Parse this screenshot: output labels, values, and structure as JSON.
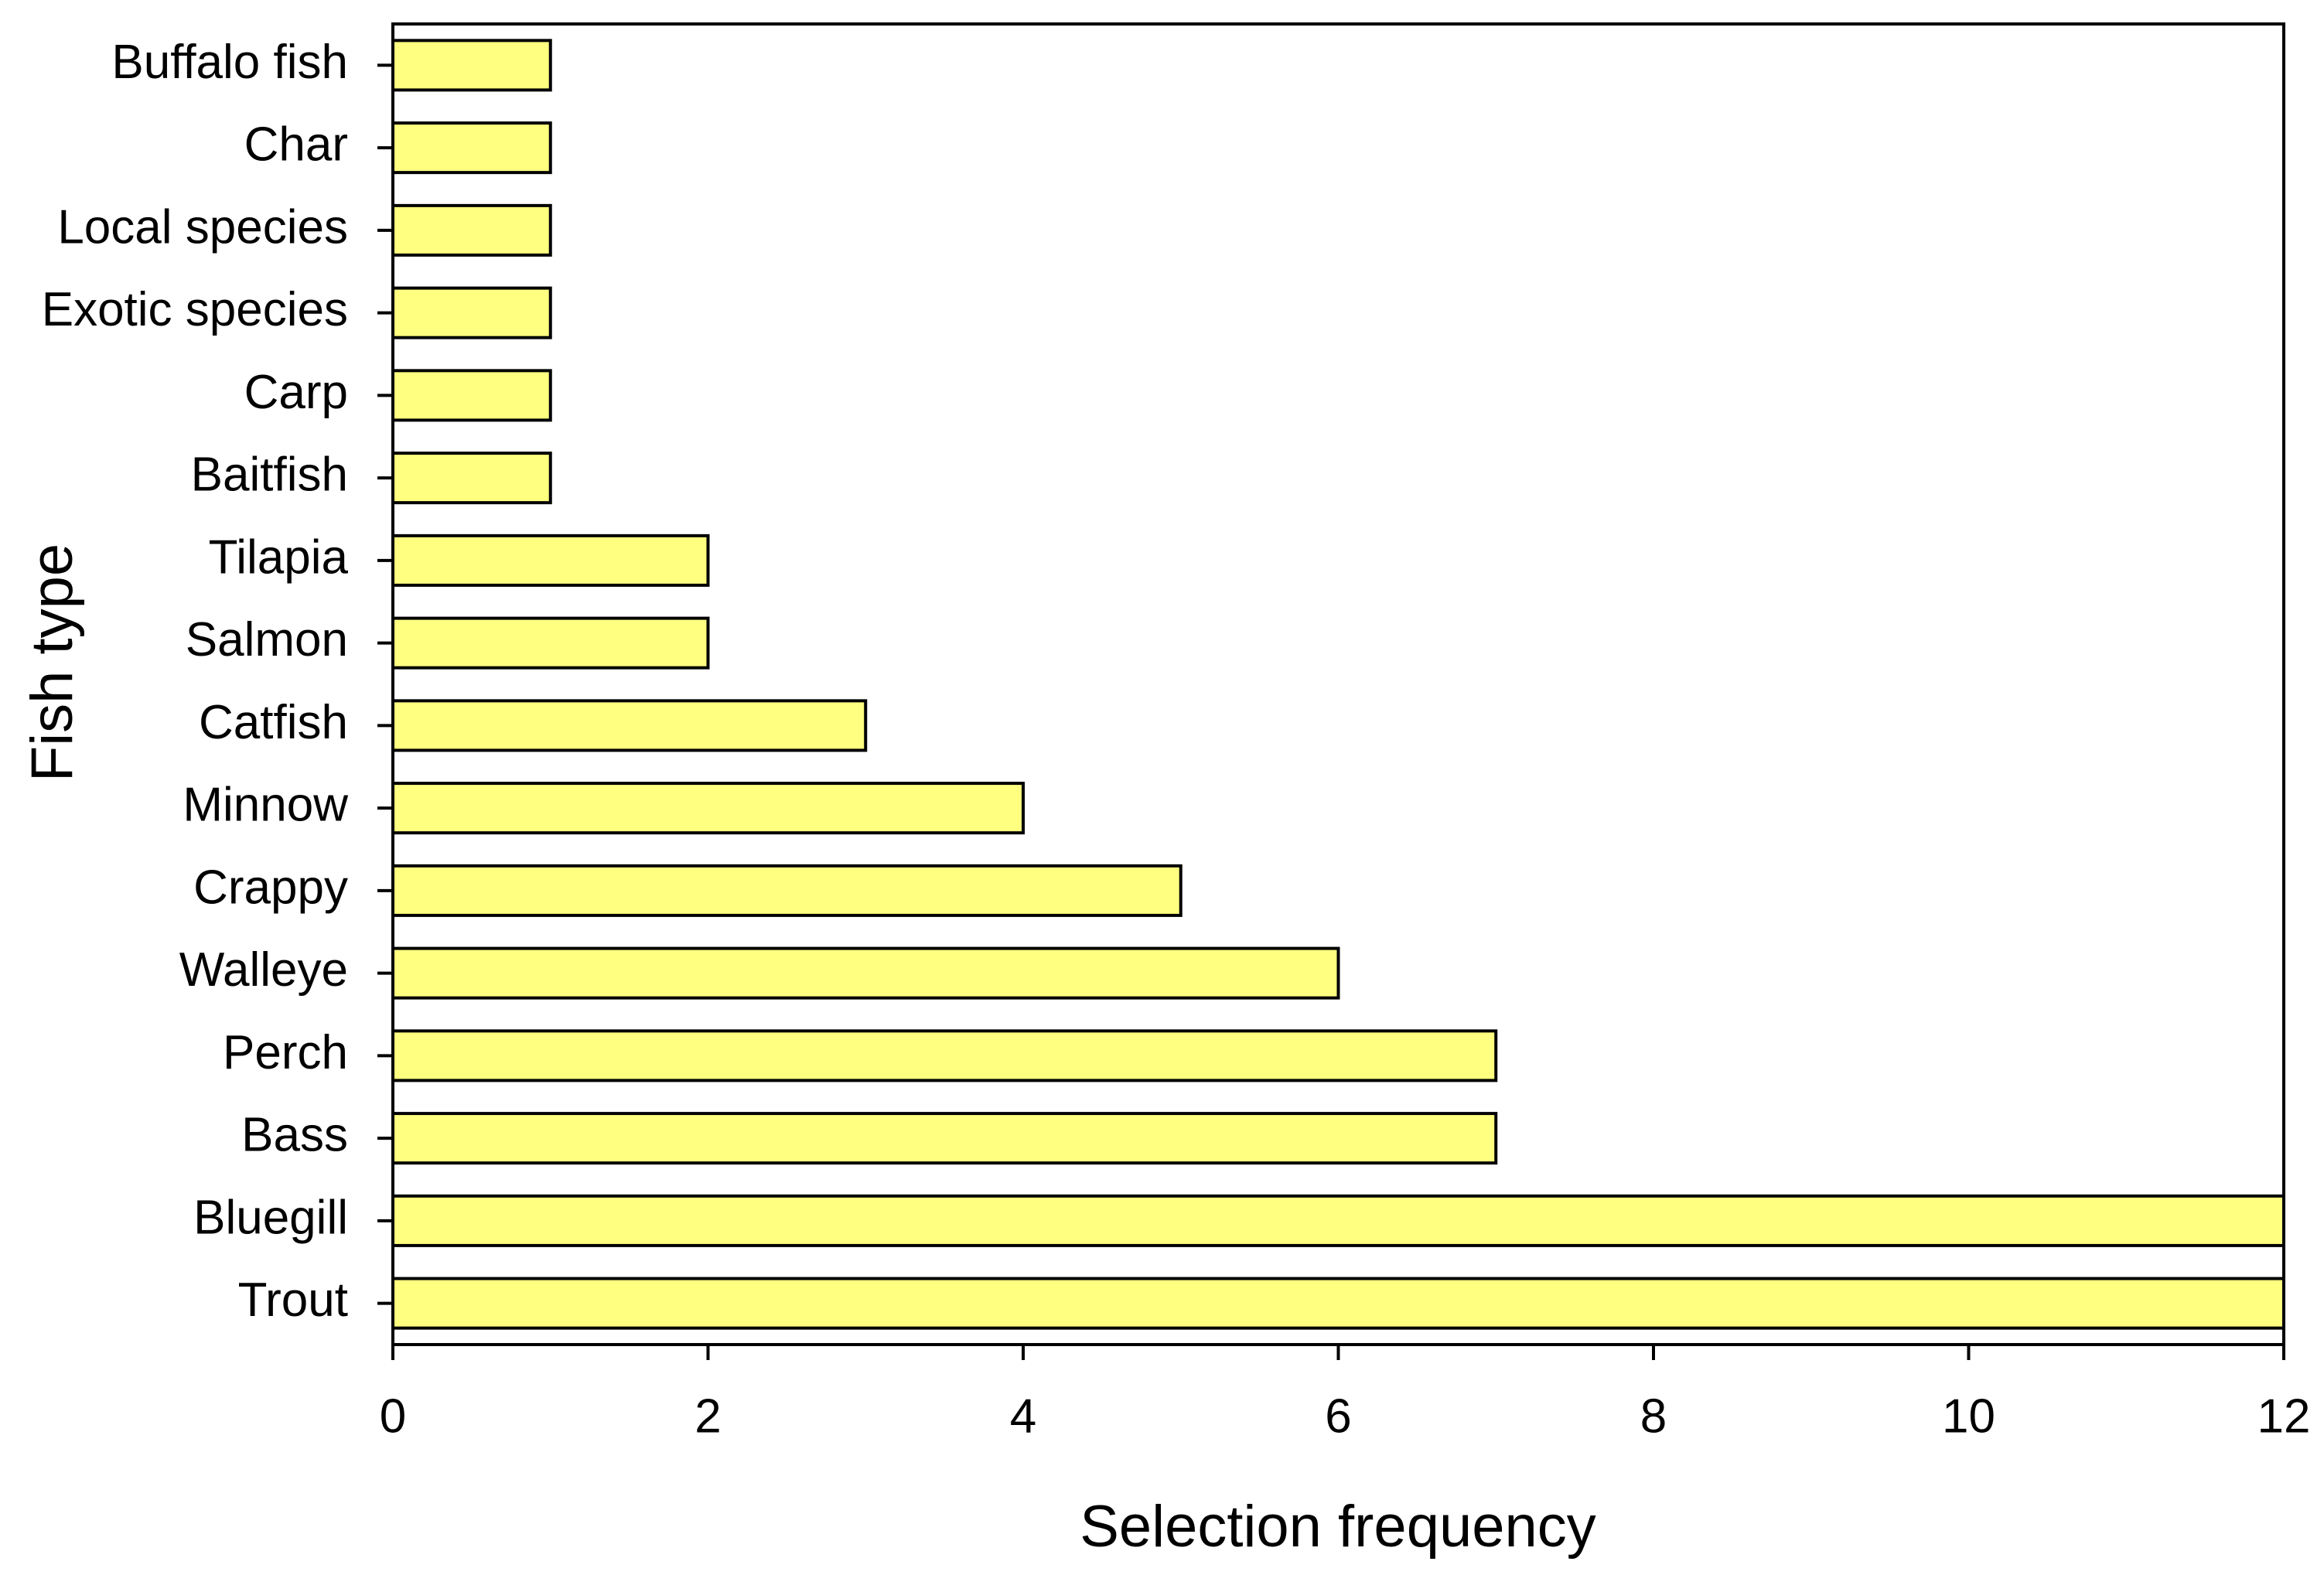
{
  "chart_data": {
    "type": "bar",
    "orientation": "horizontal",
    "x_label": "Selection frequency",
    "y_label": "Fish type",
    "categories": [
      "Buffalo fish",
      "Char",
      "Local species",
      "Exotic species",
      "Carp",
      "Baitfish",
      "Tilapia",
      "Salmon",
      "Catfish",
      "Minnow",
      "Crappy",
      "Walleye",
      "Perch",
      "Bass",
      "Bluegill",
      "Trout"
    ],
    "values": [
      1,
      1,
      1,
      1,
      1,
      1,
      2,
      2,
      3,
      4,
      5,
      6,
      7,
      7,
      12,
      12
    ],
    "color": "#ffff80",
    "xlim": [
      0,
      12
    ],
    "xticks": [
      0,
      2,
      4,
      6,
      8,
      10,
      12
    ],
    "grid": false
  }
}
